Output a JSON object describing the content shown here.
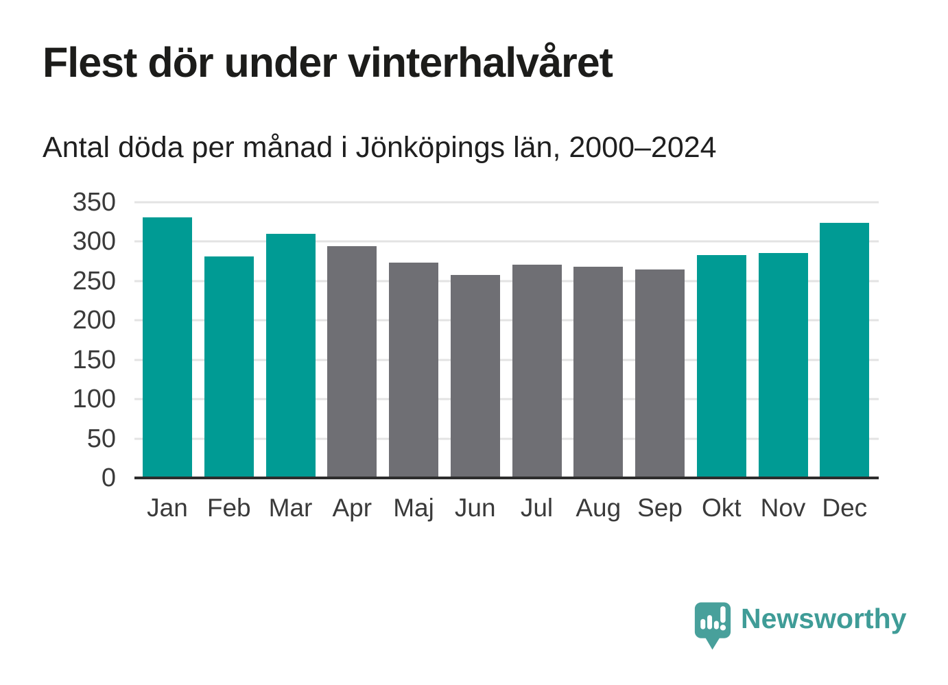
{
  "header": {
    "title": "Flest dör under vinterhalvåret",
    "subtitle": "Antal döda per månad i Jönköpings län, 2000–2024"
  },
  "chart_data": {
    "type": "bar",
    "title": "Flest dör under vinterhalvåret",
    "subtitle": "Antal döda per månad i Jönköpings län, 2000–2024",
    "categories": [
      "Jan",
      "Feb",
      "Mar",
      "Apr",
      "Maj",
      "Jun",
      "Jul",
      "Aug",
      "Sep",
      "Okt",
      "Nov",
      "Dec"
    ],
    "values": [
      331,
      281,
      310,
      294,
      273,
      258,
      271,
      268,
      265,
      283,
      286,
      324
    ],
    "bar_color_keys": [
      "winter",
      "winter",
      "winter",
      "summer",
      "summer",
      "summer",
      "summer",
      "summer",
      "summer",
      "winter",
      "winter",
      "winter"
    ],
    "colors": {
      "winter": "#009b94",
      "summer": "#6f6f74"
    },
    "xlabel": "",
    "ylabel": "",
    "ylim": [
      0,
      350
    ],
    "yticks": [
      0,
      50,
      100,
      150,
      200,
      250,
      300,
      350
    ],
    "grid": "horizontal",
    "legend": "none",
    "axis_color": "#2d2d2d",
    "gridline_color": "#e3e3e3",
    "tick_label_color": "#3a3a3a"
  },
  "footer": {
    "brand": "Newsworthy",
    "brand_color": "#3f9c97",
    "icon": "newsworthy-speech-bubble-chart-icon",
    "icon_color": "#48a09b"
  }
}
